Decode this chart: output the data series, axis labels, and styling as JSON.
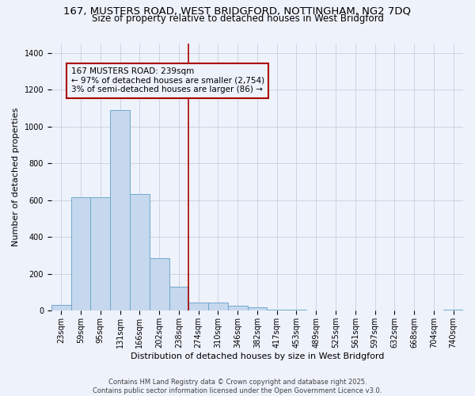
{
  "title_line1": "167, MUSTERS ROAD, WEST BRIDGFORD, NOTTINGHAM, NG2 7DQ",
  "title_line2": "Size of property relative to detached houses in West Bridgford",
  "xlabel": "Distribution of detached houses by size in West Bridgford",
  "ylabel": "Number of detached properties",
  "footer_line1": "Contains HM Land Registry data © Crown copyright and database right 2025.",
  "footer_line2": "Contains public sector information licensed under the Open Government Licence v3.0.",
  "categories": [
    "23sqm",
    "59sqm",
    "95sqm",
    "131sqm",
    "166sqm",
    "202sqm",
    "238sqm",
    "274sqm",
    "310sqm",
    "346sqm",
    "382sqm",
    "417sqm",
    "453sqm",
    "489sqm",
    "525sqm",
    "561sqm",
    "597sqm",
    "632sqm",
    "668sqm",
    "704sqm",
    "740sqm"
  ],
  "values": [
    30,
    615,
    615,
    1090,
    635,
    285,
    130,
    45,
    45,
    25,
    20,
    5,
    5,
    0,
    0,
    0,
    0,
    0,
    0,
    0,
    5
  ],
  "bar_color": "#c5d8ee",
  "bar_edge_color": "#6eaacc",
  "marker_label": "167 MUSTERS ROAD: 239sqm",
  "annotation_line2": "← 97% of detached houses are smaller (2,754)",
  "annotation_line3": "3% of semi-detached houses are larger (86) →",
  "marker_color": "#aa0000",
  "annotation_box_color": "#aa0000",
  "ylim": [
    0,
    1450
  ],
  "yticks": [
    0,
    200,
    400,
    600,
    800,
    1000,
    1200,
    1400
  ],
  "bg_color": "#eef2fb",
  "grid_color": "#c8cfe0",
  "title_fontsize": 9.5,
  "subtitle_fontsize": 8.5,
  "axis_label_fontsize": 8,
  "tick_fontsize": 7,
  "annotation_fontsize": 7.5,
  "footer_fontsize": 6
}
